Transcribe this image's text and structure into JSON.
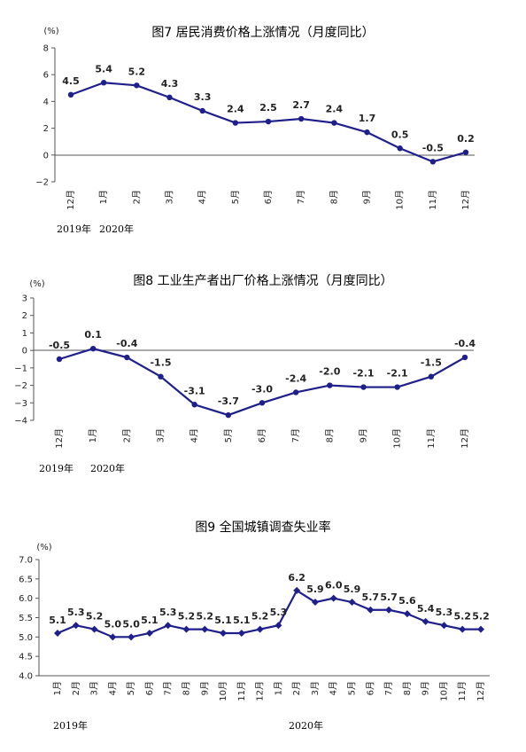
{
  "charts": [
    {
      "title": "图7  居民消费价格上涨情况（月度同比）",
      "unit": "(%)",
      "years": [
        "2019年",
        "2020年"
      ]
    },
    {
      "title": "图8  工业生产者出厂价格上涨情况（月度同比）",
      "unit": "(%)",
      "years": [
        "2019年",
        "2020年"
      ]
    },
    {
      "title": "图9  全国城镇调查失业率",
      "unit": "(%)",
      "years": [
        "2019年",
        "2020年"
      ]
    }
  ],
  "chart_data": [
    {
      "type": "line",
      "title": "图7  居民消费价格上涨情况（月度同比）",
      "ylabel": "(%)",
      "categories": [
        "12月",
        "1月",
        "2月",
        "3月",
        "4月",
        "5月",
        "6月",
        "7月",
        "8月",
        "9月",
        "10月",
        "11月",
        "12月"
      ],
      "series": [
        {
          "values": [
            4.5,
            5.4,
            5.2,
            4.3,
            3.3,
            2.4,
            2.5,
            2.7,
            2.4,
            1.7,
            0.5,
            -0.5,
            0.2
          ]
        }
      ],
      "data_labels": [
        "4.5",
        "5.4",
        "5.2",
        "4.3",
        "3.3",
        "2.4",
        "2.5",
        "2.7",
        "2.4",
        "1.7",
        "0.5",
        "-0.5",
        "0.2"
      ],
      "yticks": [
        "8",
        "6",
        "4",
        "2",
        "0",
        "−2"
      ],
      "ylim": [
        -2,
        8
      ],
      "color": "#1f1f8c",
      "grid": false
    },
    {
      "type": "line",
      "title": "图8  工业生产者出厂价格上涨情况（月度同比）",
      "ylabel": "(%)",
      "categories": [
        "12月",
        "1月",
        "2月",
        "3月",
        "4月",
        "5月",
        "6月",
        "7月",
        "8月",
        "9月",
        "10月",
        "11月",
        "12月"
      ],
      "series": [
        {
          "values": [
            -0.5,
            0.1,
            -0.4,
            -1.5,
            -3.1,
            -3.7,
            -3.0,
            -2.4,
            -2.0,
            -2.1,
            -2.1,
            -1.5,
            -0.4
          ]
        }
      ],
      "data_labels": [
        "-0.5",
        "0.1",
        "-0.4",
        "-1.5",
        "-3.1",
        "-3.7",
        "-3.0",
        "-2.4",
        "-2.0",
        "-2.1",
        "-2.1",
        "-1.5",
        "-0.4"
      ],
      "yticks": [
        "3",
        "2",
        "1",
        "0",
        "−1",
        "−2",
        "−3",
        "−4"
      ],
      "ylim": [
        -4,
        3
      ],
      "color": "#1f1f8c",
      "grid": false
    },
    {
      "type": "line",
      "title": "图9  全国城镇调查失业率",
      "ylabel": "(%)",
      "categories": [
        "1月",
        "2月",
        "3月",
        "4月",
        "5月",
        "6月",
        "7月",
        "8月",
        "9月",
        "10月",
        "11月",
        "12月",
        "1月",
        "2月",
        "3月",
        "4月",
        "5月",
        "6月",
        "7月",
        "8月",
        "9月",
        "10月",
        "11月",
        "12月"
      ],
      "series": [
        {
          "values": [
            5.1,
            5.3,
            5.2,
            5.0,
            5.0,
            5.1,
            5.3,
            5.2,
            5.2,
            5.1,
            5.1,
            5.2,
            5.3,
            6.2,
            5.9,
            6.0,
            5.9,
            5.7,
            5.7,
            5.6,
            5.4,
            5.3,
            5.2,
            5.2
          ]
        }
      ],
      "data_labels": [
        "5.1",
        "5.3",
        "5.2",
        "5.0",
        "5.0",
        "5.1",
        "5.3",
        "5.2",
        "5.2",
        "5.1",
        "5.1",
        "5.2",
        "5.3",
        "6.2",
        "5.9",
        "6.0",
        "5.9",
        "5.7",
        "5.7",
        "5.6",
        "5.4",
        "5.3",
        "5.2",
        "5.2"
      ],
      "yticks": [
        "7.0",
        "6.5",
        "6.0",
        "5.5",
        "5.0",
        "4.5",
        "4.0"
      ],
      "ylim": [
        4.0,
        7.0
      ],
      "color": "#1f1f8c",
      "grid": false
    }
  ]
}
